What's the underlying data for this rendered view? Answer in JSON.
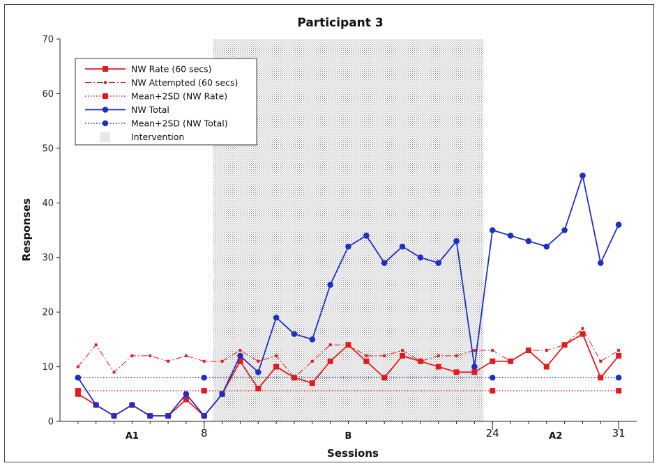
{
  "chart_data": {
    "type": "line",
    "title": "Participant 3",
    "xlabel": "Sessions",
    "ylabel": "Responses",
    "ylim": [
      0,
      70
    ],
    "yticks": [
      "0",
      "10",
      "20",
      "30",
      "40",
      "50",
      "60",
      "70"
    ],
    "xlim": [
      0,
      32
    ],
    "session_marks": [
      {
        "x": 8,
        "label": "8"
      },
      {
        "x": 24,
        "label": "24"
      },
      {
        "x": 31,
        "label": "31"
      }
    ],
    "phases": [
      {
        "label": "A1",
        "x": 4
      },
      {
        "label": "B",
        "x": 16
      },
      {
        "label": "A2",
        "x": 27.5
      }
    ],
    "intervention": {
      "start": 8.5,
      "end": 23.5
    },
    "grid": false,
    "legend": {
      "placement": "top-left",
      "entries": [
        {
          "label": "NW Rate (60 secs)",
          "color": "#e31a1c",
          "style": "solid-square"
        },
        {
          "label": "NW Attempted (60 secs)",
          "color": "#e31a1c",
          "style": "dashdot-small"
        },
        {
          "label": "Mean+2SD (NW Rate)",
          "color": "#e31a1c",
          "style": "dotted-square"
        },
        {
          "label": "NW Total",
          "color": "#1f2ec4",
          "style": "solid-circle"
        },
        {
          "label": "Mean+2SD (NW Total)",
          "color": "#1f2ec4",
          "style": "dotted-circle"
        },
        {
          "label": "Intervention",
          "color": "#999999",
          "style": "hatch"
        }
      ]
    },
    "series": [
      {
        "name": "NW Rate (60 secs)",
        "color": "#e31a1c",
        "x": [
          1,
          2,
          3,
          4,
          5,
          6,
          7,
          8,
          9,
          10,
          11,
          12,
          13,
          14,
          15,
          16,
          17,
          18,
          19,
          20,
          21,
          22,
          23,
          24,
          25,
          26,
          27,
          28,
          29,
          30,
          31
        ],
        "values": [
          5,
          3,
          1,
          3,
          1,
          1,
          4,
          1,
          5,
          11,
          6,
          10,
          8,
          7,
          11,
          14,
          11,
          8,
          12,
          11,
          10,
          9,
          9,
          11,
          11,
          13,
          10,
          14,
          16,
          8,
          12
        ]
      },
      {
        "name": "NW Attempted (60 secs)",
        "color": "#e31a1c",
        "x": [
          1,
          2,
          3,
          4,
          5,
          6,
          7,
          8,
          9,
          10,
          11,
          12,
          13,
          14,
          15,
          16,
          17,
          18,
          19,
          20,
          21,
          22,
          23,
          24,
          25,
          26,
          27,
          28,
          29,
          30,
          31
        ],
        "values": [
          10,
          14,
          9,
          12,
          12,
          11,
          12,
          11,
          11,
          13,
          11,
          12,
          8,
          11,
          14,
          14,
          12,
          12,
          13,
          11,
          12,
          12,
          13,
          13,
          11,
          13,
          13,
          14,
          17,
          11,
          13
        ]
      },
      {
        "name": "Mean+2SD (NW Rate)",
        "color": "#e31a1c",
        "x": [
          1,
          8,
          24,
          31
        ],
        "values": [
          5.6,
          5.6,
          5.6,
          5.6
        ]
      },
      {
        "name": "NW Total",
        "color": "#1f2ec4",
        "x": [
          1,
          2,
          3,
          4,
          5,
          6,
          7,
          8,
          9,
          10,
          11,
          12,
          13,
          14,
          15,
          16,
          17,
          18,
          19,
          20,
          21,
          22,
          23,
          24,
          25,
          26,
          27,
          28,
          29,
          30,
          31
        ],
        "values": [
          8,
          3,
          1,
          3,
          1,
          1,
          5,
          1,
          5,
          12,
          9,
          19,
          16,
          15,
          25,
          32,
          34,
          29,
          32,
          30,
          29,
          33,
          10,
          35,
          34,
          33,
          32,
          35,
          45,
          29,
          36
        ]
      },
      {
        "name": "Mean+2SD (NW Total)",
        "color": "#1f2ec4",
        "x": [
          1,
          8,
          24,
          31
        ],
        "values": [
          8,
          8,
          8,
          8
        ]
      }
    ]
  }
}
